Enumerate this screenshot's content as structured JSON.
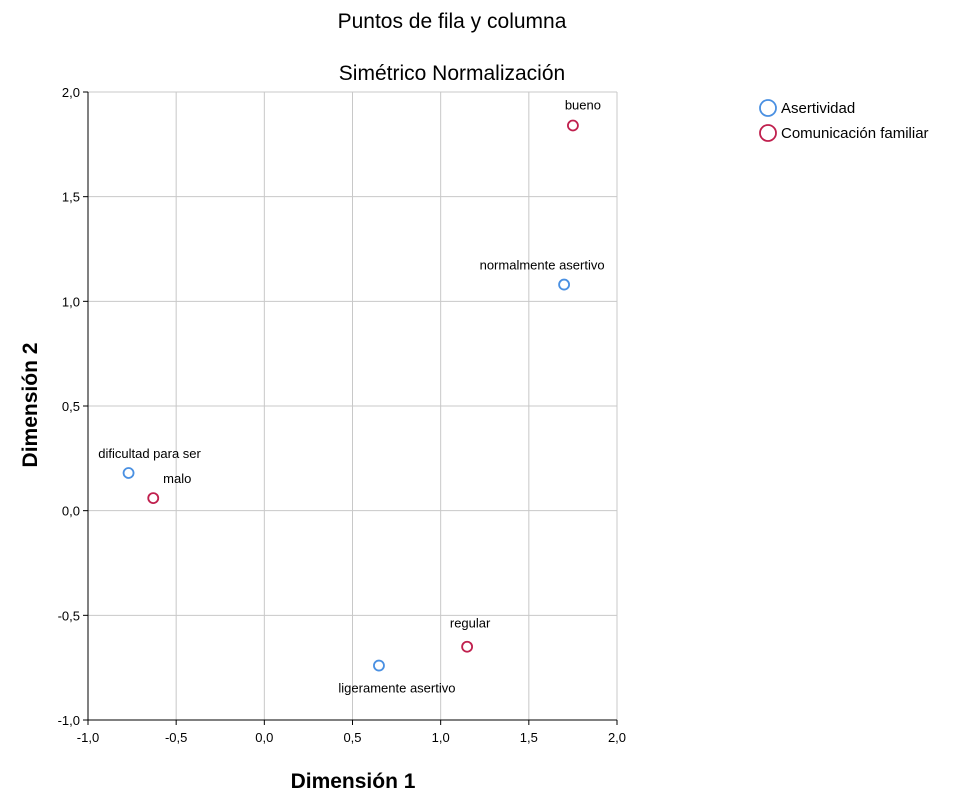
{
  "chart_data": {
    "type": "scatter",
    "title": "Puntos de fila y columna",
    "subtitle": "Simétrico Normalización",
    "xlabel": "Dimensión 1",
    "ylabel": "Dimensión 2",
    "xlim": [
      -1.0,
      2.0
    ],
    "ylim": [
      -1.0,
      2.0
    ],
    "xticks": [
      "-1,0",
      "-0,5",
      "0,0",
      "0,5",
      "1,0",
      "1,5",
      "2,0"
    ],
    "yticks": [
      "-1,0",
      "-0,5",
      "0,0",
      "0,5",
      "1,0",
      "1,5",
      "2,0"
    ],
    "grid": true,
    "legend_position": "top-right outside",
    "series": [
      {
        "name": "Asertividad",
        "color": "#4a90e2",
        "points": [
          {
            "label": "dificultad para ser",
            "x": -0.77,
            "y": 0.18
          },
          {
            "label": "ligeramente asertivo",
            "x": 0.65,
            "y": -0.74
          },
          {
            "label": "normalmente asertivo",
            "x": 1.7,
            "y": 1.08
          }
        ]
      },
      {
        "name": "Comunicación familiar",
        "color": "#c0204e",
        "points": [
          {
            "label": "malo",
            "x": -0.63,
            "y": 0.06
          },
          {
            "label": "regular",
            "x": 1.15,
            "y": -0.65
          },
          {
            "label": "bueno",
            "x": 1.75,
            "y": 1.84
          }
        ]
      }
    ]
  }
}
